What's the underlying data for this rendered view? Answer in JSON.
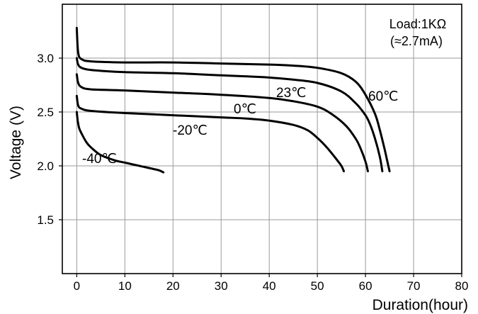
{
  "chart_data": {
    "type": "line",
    "xlabel": "Duration(hour)",
    "ylabel": "Voltage (V)",
    "xlim": [
      -3,
      80
    ],
    "ylim": [
      1.0,
      3.5
    ],
    "xticks": [
      0,
      10,
      20,
      30,
      40,
      50,
      60,
      70,
      80
    ],
    "yticks": [
      1.5,
      2.0,
      2.5,
      3.0
    ],
    "ytick_labels": [
      "1.5",
      "2.0",
      "2.5",
      "3.0"
    ],
    "grid": true,
    "annotation": [
      "Load:1KΩ",
      "(≈2.7mA)"
    ],
    "series": [
      {
        "name": "60℃",
        "x": [
          0,
          0.3,
          1,
          3,
          10,
          20,
          30,
          40,
          45,
          50,
          55,
          58,
          60,
          62,
          63,
          64,
          64.5,
          65
        ],
        "y": [
          3.28,
          3.05,
          2.99,
          2.97,
          2.96,
          2.96,
          2.95,
          2.94,
          2.93,
          2.91,
          2.86,
          2.78,
          2.66,
          2.48,
          2.33,
          2.15,
          2.05,
          1.95
        ]
      },
      {
        "name": "23℃",
        "x": [
          0,
          0.3,
          1,
          3,
          10,
          20,
          30,
          40,
          45,
          50,
          55,
          58,
          60,
          61,
          62,
          63,
          63.5
        ],
        "y": [
          3.0,
          2.94,
          2.91,
          2.89,
          2.87,
          2.86,
          2.84,
          2.82,
          2.8,
          2.77,
          2.69,
          2.58,
          2.47,
          2.38,
          2.25,
          2.08,
          1.95
        ]
      },
      {
        "name": "0℃",
        "x": [
          0,
          0.3,
          1,
          3,
          10,
          20,
          30,
          40,
          45,
          50,
          53,
          56,
          58,
          59,
          60,
          60.5
        ],
        "y": [
          2.85,
          2.77,
          2.73,
          2.71,
          2.7,
          2.68,
          2.66,
          2.63,
          2.6,
          2.55,
          2.48,
          2.37,
          2.25,
          2.16,
          2.04,
          1.95
        ]
      },
      {
        "name": "-20℃",
        "x": [
          0,
          0.3,
          1,
          3,
          10,
          20,
          30,
          35,
          40,
          45,
          48,
          50,
          52,
          54,
          55,
          55.5
        ],
        "y": [
          2.65,
          2.56,
          2.53,
          2.51,
          2.49,
          2.47,
          2.45,
          2.44,
          2.42,
          2.38,
          2.33,
          2.26,
          2.17,
          2.06,
          2.0,
          1.95
        ]
      },
      {
        "name": "-40℃",
        "x": [
          0,
          0.2,
          0.5,
          1,
          2,
          3,
          5,
          8,
          10,
          12,
          15,
          17,
          18
        ],
        "y": [
          2.5,
          2.42,
          2.35,
          2.3,
          2.22,
          2.17,
          2.1,
          2.05,
          2.03,
          2.01,
          1.98,
          1.96,
          1.94
        ]
      }
    ]
  }
}
